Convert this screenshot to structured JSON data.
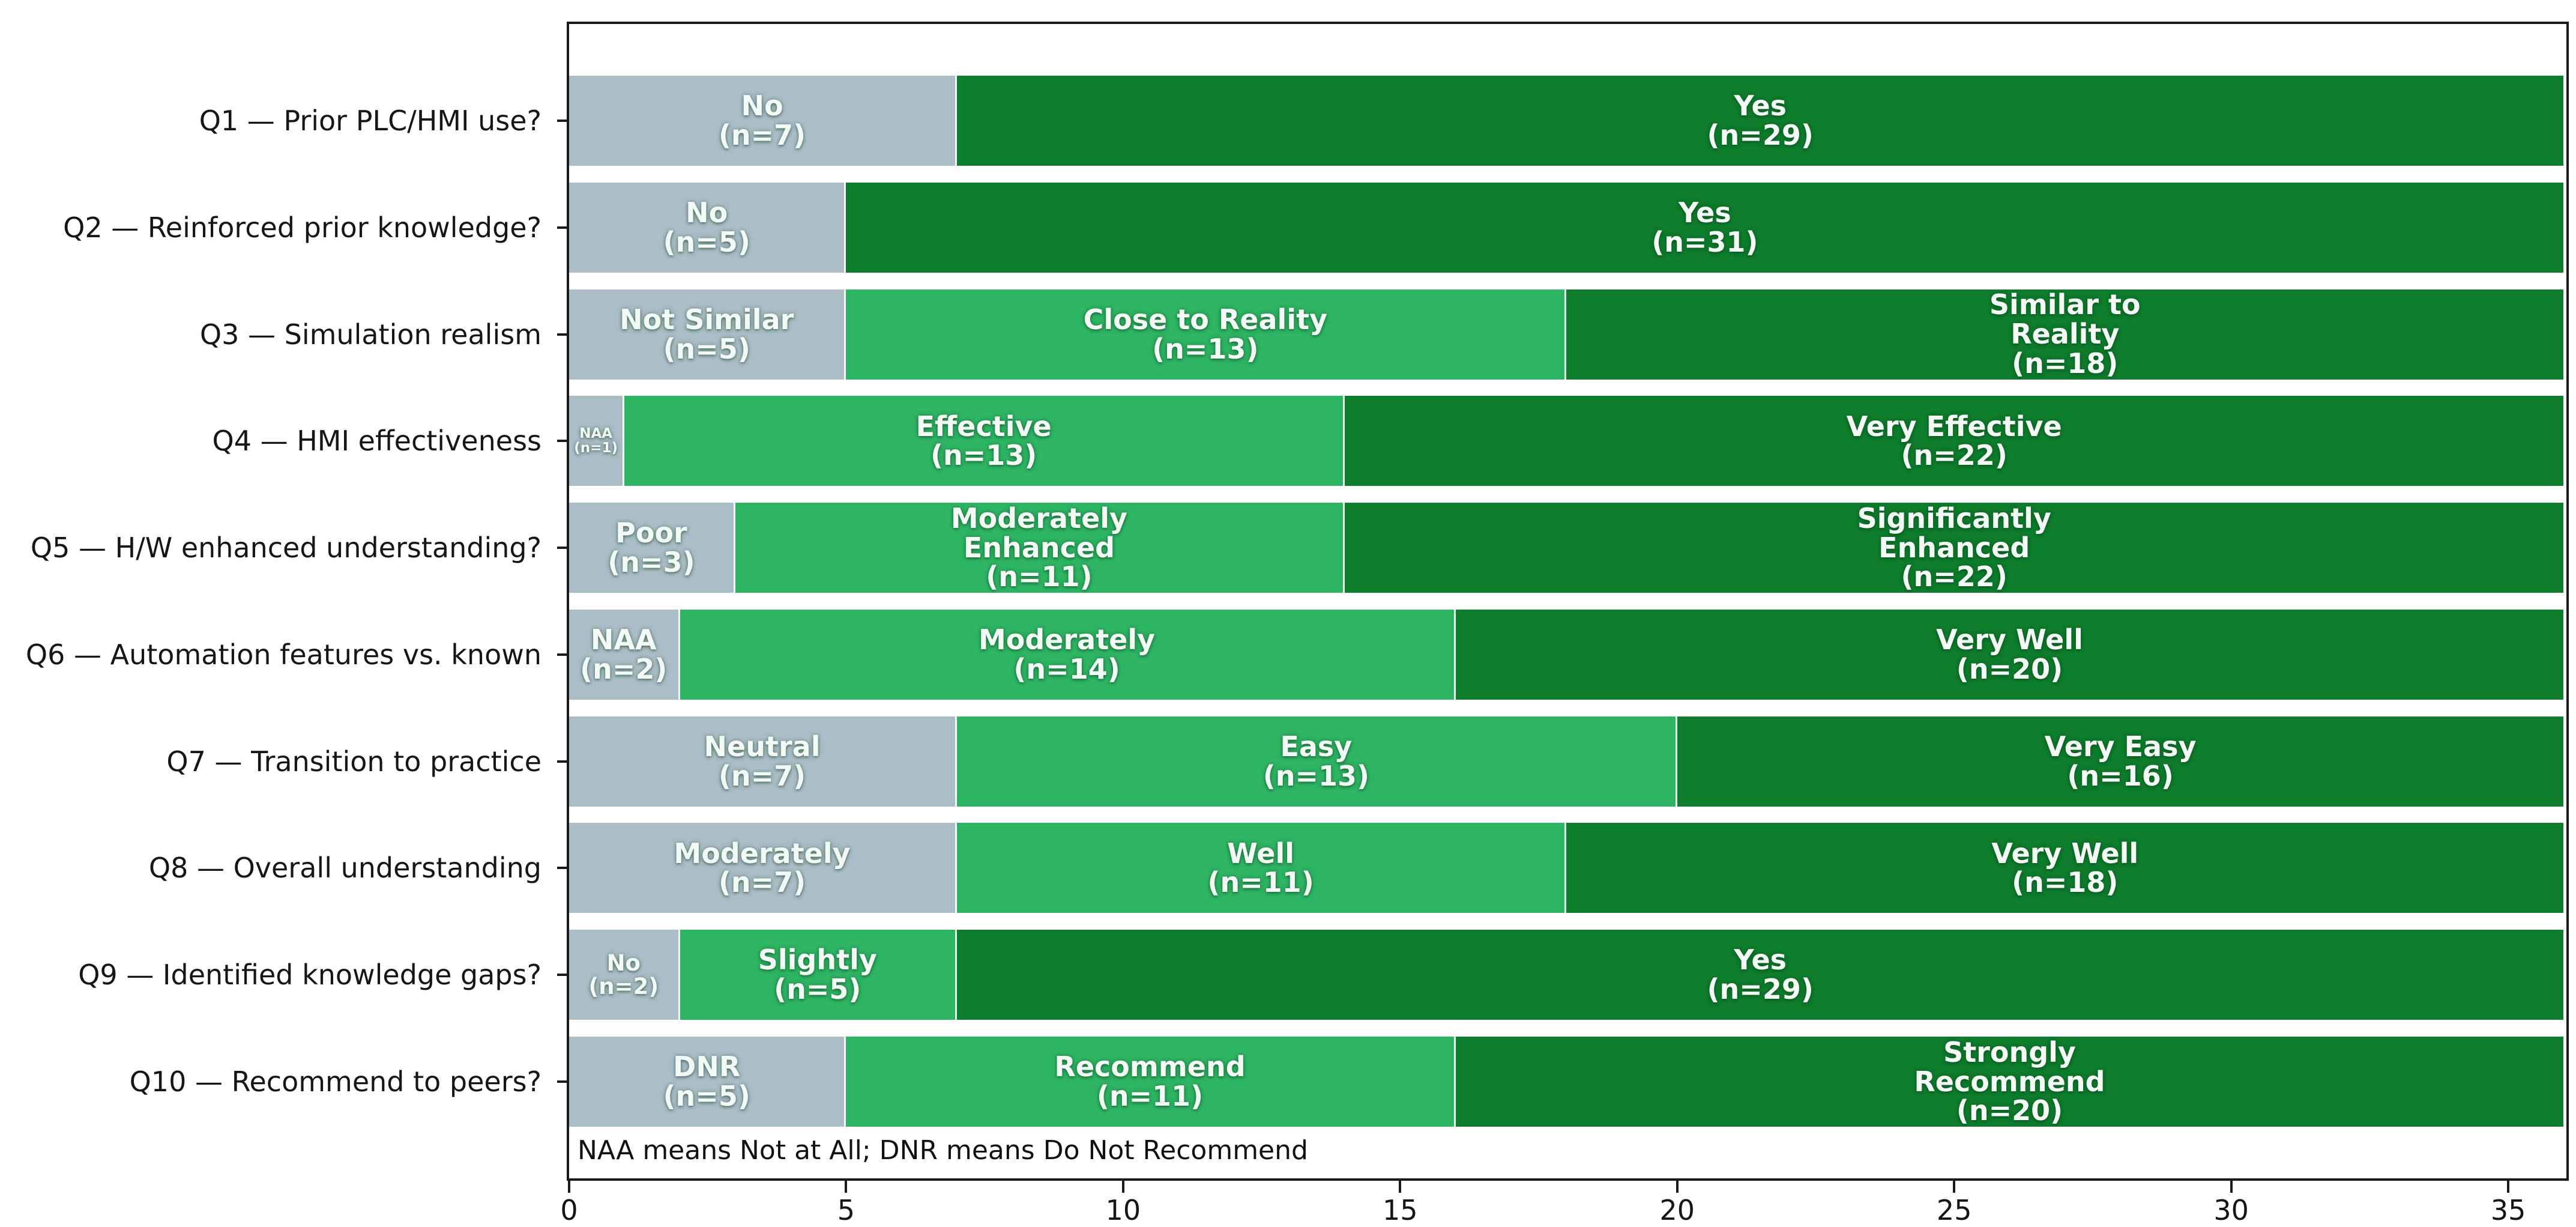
{
  "chart_data": {
    "type": "bar",
    "orientation": "horizontal",
    "stacked": true,
    "title": "",
    "xlabel": "",
    "ylabel": "",
    "xlim": [
      0,
      36.05
    ],
    "xticks": [
      0,
      5,
      10,
      15,
      20,
      25,
      30,
      35
    ],
    "grid": false,
    "legend": false,
    "footnote": "NAA means Not at All; DNR means Do Not Recommend",
    "palette": {
      "low": "#abbec8",
      "mid": "#2eb564",
      "high": "#0e7d2c"
    },
    "categories": [
      "Q1 — Prior PLC/HMI use?",
      "Q2 — Reinforced prior knowledge?",
      "Q3 — Simulation realism",
      "Q4 — HMI effectiveness",
      "Q5 — H/W enhanced understanding?",
      "Q6 — Automation features vs. known",
      "Q7 — Transition to practice",
      "Q8 — Overall understanding",
      "Q9 — Identified knowledge gaps?",
      "Q10 — Recommend to peers?"
    ],
    "rows": [
      {
        "segments": [
          {
            "label": "No",
            "n": 7,
            "value": 7,
            "tone": "low",
            "size": "normal",
            "lines": [
              "No",
              "(n=7)"
            ]
          },
          {
            "label": "Yes",
            "n": 29,
            "value": 29,
            "tone": "high",
            "size": "normal",
            "lines": [
              "Yes",
              "(n=29)"
            ]
          }
        ]
      },
      {
        "segments": [
          {
            "label": "No",
            "n": 5,
            "value": 5,
            "tone": "low",
            "size": "normal",
            "lines": [
              "No",
              "(n=5)"
            ]
          },
          {
            "label": "Yes",
            "n": 31,
            "value": 31,
            "tone": "high",
            "size": "normal",
            "lines": [
              "Yes",
              "(n=31)"
            ]
          }
        ]
      },
      {
        "segments": [
          {
            "label": "Not Similar",
            "n": 5,
            "value": 5,
            "tone": "low",
            "size": "normal",
            "lines": [
              "Not Similar",
              "(n=5)"
            ]
          },
          {
            "label": "Close to Reality",
            "n": 13,
            "value": 13,
            "tone": "mid",
            "size": "normal",
            "lines": [
              "Close to Reality",
              "(n=13)"
            ]
          },
          {
            "label": "Similar to Reality",
            "n": 18,
            "value": 18,
            "tone": "high",
            "size": "normal",
            "lines": [
              "Similar to",
              "Reality",
              "(n=18)"
            ]
          }
        ]
      },
      {
        "segments": [
          {
            "label": "NAA",
            "n": 1,
            "value": 1,
            "tone": "low",
            "size": "tiny",
            "lines": [
              "NAA",
              "(n=1)"
            ]
          },
          {
            "label": "Effective",
            "n": 13,
            "value": 13,
            "tone": "mid",
            "size": "normal",
            "lines": [
              "Effective",
              "(n=13)"
            ]
          },
          {
            "label": "Very Effective",
            "n": 22,
            "value": 22,
            "tone": "high",
            "size": "normal",
            "lines": [
              "Very Effective",
              "(n=22)"
            ]
          }
        ]
      },
      {
        "segments": [
          {
            "label": "Poor",
            "n": 3,
            "value": 3,
            "tone": "low",
            "size": "normal",
            "lines": [
              "Poor",
              "(n=3)"
            ]
          },
          {
            "label": "Moderately Enhanced",
            "n": 11,
            "value": 11,
            "tone": "mid",
            "size": "normal",
            "lines": [
              "Moderately",
              "Enhanced",
              "(n=11)"
            ]
          },
          {
            "label": "Significantly Enhanced",
            "n": 22,
            "value": 22,
            "tone": "high",
            "size": "normal",
            "lines": [
              "Significantly",
              "Enhanced",
              "(n=22)"
            ]
          }
        ]
      },
      {
        "segments": [
          {
            "label": "NAA",
            "n": 2,
            "value": 2,
            "tone": "low",
            "size": "normal",
            "lines": [
              "NAA",
              "(n=2)"
            ]
          },
          {
            "label": "Moderately",
            "n": 14,
            "value": 14,
            "tone": "mid",
            "size": "normal",
            "lines": [
              "Moderately",
              "(n=14)"
            ]
          },
          {
            "label": "Very Well",
            "n": 20,
            "value": 20,
            "tone": "high",
            "size": "normal",
            "lines": [
              "Very Well",
              "(n=20)"
            ]
          }
        ]
      },
      {
        "segments": [
          {
            "label": "Neutral",
            "n": 7,
            "value": 7,
            "tone": "low",
            "size": "normal",
            "lines": [
              "Neutral",
              "(n=7)"
            ]
          },
          {
            "label": "Easy",
            "n": 13,
            "value": 13,
            "tone": "mid",
            "size": "normal",
            "lines": [
              "Easy",
              "(n=13)"
            ]
          },
          {
            "label": "Very Easy",
            "n": 16,
            "value": 16,
            "tone": "high",
            "size": "normal",
            "lines": [
              "Very Easy",
              "(n=16)"
            ]
          }
        ]
      },
      {
        "segments": [
          {
            "label": "Moderately",
            "n": 7,
            "value": 7,
            "tone": "low",
            "size": "normal",
            "lines": [
              "Moderately",
              "(n=7)"
            ]
          },
          {
            "label": "Well",
            "n": 11,
            "value": 11,
            "tone": "mid",
            "size": "normal",
            "lines": [
              "Well",
              "(n=11)"
            ]
          },
          {
            "label": "Very Well",
            "n": 18,
            "value": 18,
            "tone": "high",
            "size": "normal",
            "lines": [
              "Very Well",
              "(n=18)"
            ]
          }
        ]
      },
      {
        "segments": [
          {
            "label": "No",
            "n": 2,
            "value": 2,
            "tone": "low",
            "size": "small",
            "lines": [
              "No",
              "(n=2)"
            ]
          },
          {
            "label": "Slightly",
            "n": 5,
            "value": 5,
            "tone": "mid",
            "size": "normal",
            "lines": [
              "Slightly",
              "(n=5)"
            ]
          },
          {
            "label": "Yes",
            "n": 29,
            "value": 29,
            "tone": "high",
            "size": "normal",
            "lines": [
              "Yes",
              "(n=29)"
            ]
          }
        ]
      },
      {
        "segments": [
          {
            "label": "DNR",
            "n": 5,
            "value": 5,
            "tone": "low",
            "size": "normal",
            "lines": [
              "DNR",
              "(n=5)"
            ]
          },
          {
            "label": "Recommend",
            "n": 11,
            "value": 11,
            "tone": "mid",
            "size": "normal",
            "lines": [
              "Recommend",
              "(n=11)"
            ]
          },
          {
            "label": "Strongly Recommend",
            "n": 20,
            "value": 20,
            "tone": "high",
            "size": "normal",
            "lines": [
              "Strongly",
              "Recommend",
              "(n=20)"
            ]
          }
        ]
      }
    ]
  }
}
